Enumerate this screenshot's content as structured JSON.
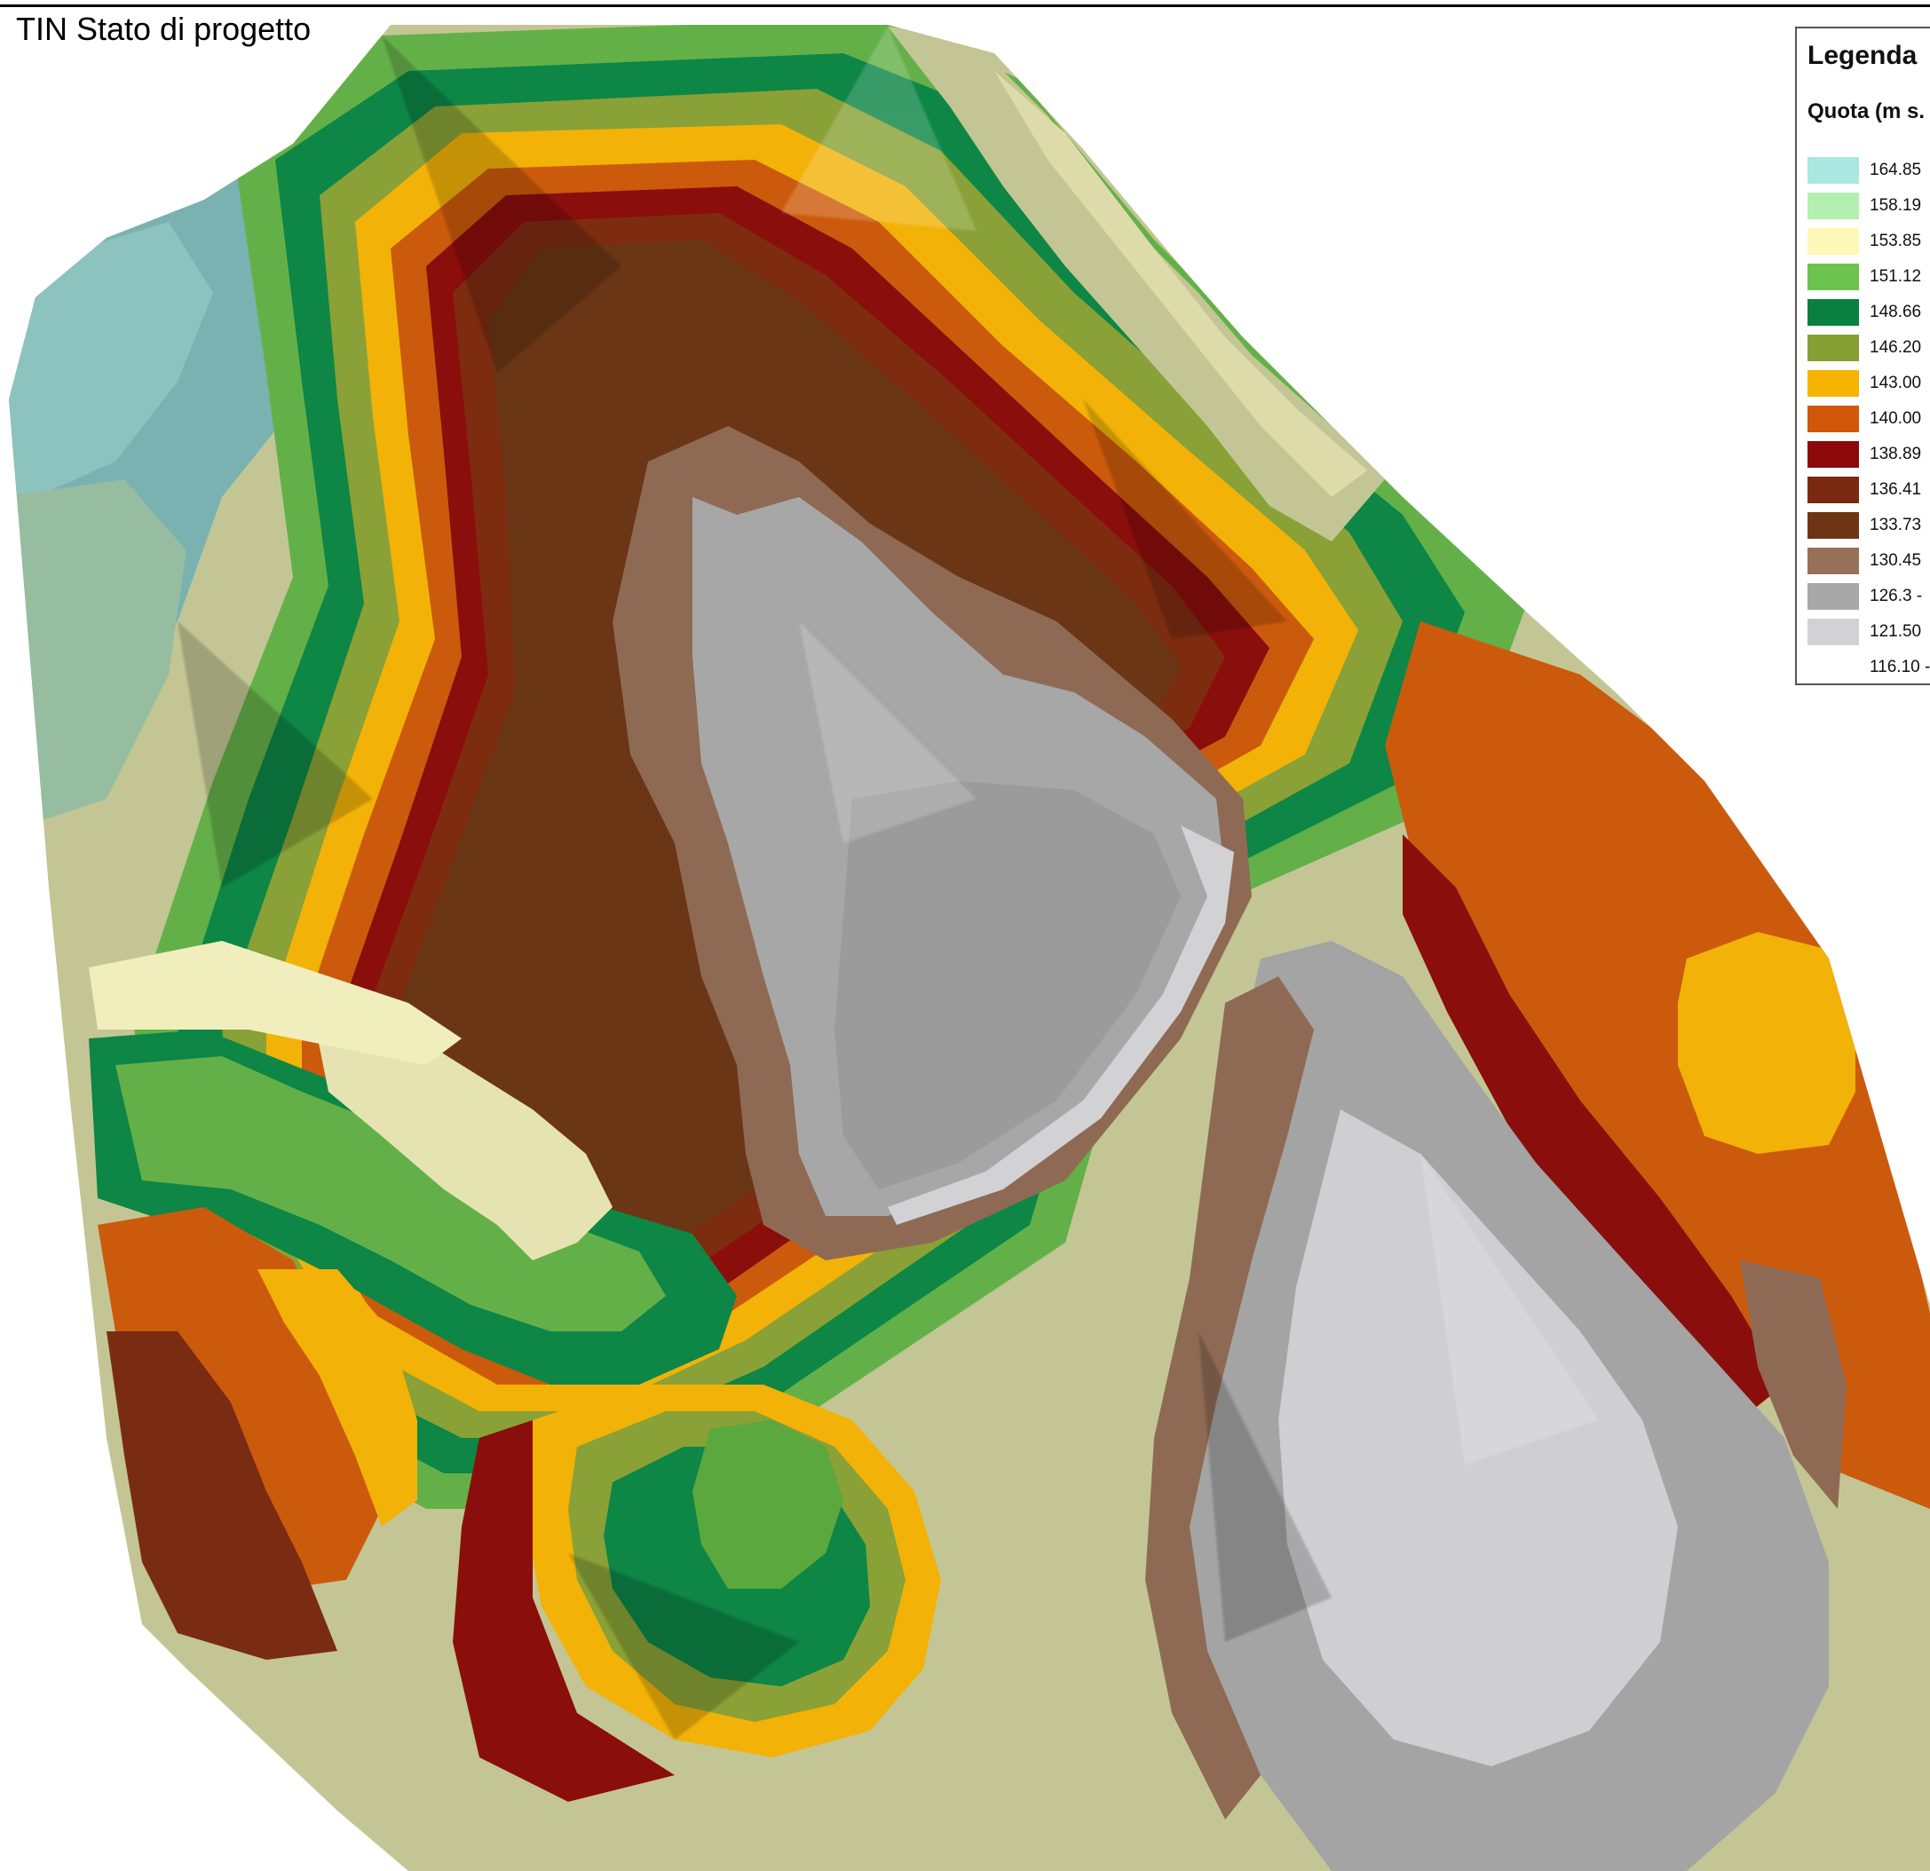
{
  "map": {
    "title": "TIN Stato di progetto"
  },
  "legend": {
    "title": "Legenda",
    "subtitle": "Quota (m s.",
    "classes": [
      {
        "label": "164.85",
        "color": "#a8e8e0"
      },
      {
        "label": "158.19",
        "color": "#b2efb0"
      },
      {
        "label": "153.85",
        "color": "#fdf8b8"
      },
      {
        "label": "151.12",
        "color": "#6cc44e"
      },
      {
        "label": "148.66",
        "color": "#0a8040"
      },
      {
        "label": "146.20",
        "color": "#86a033"
      },
      {
        "label": "143.00",
        "color": "#f5b400"
      },
      {
        "label": "140.00",
        "color": "#d15808"
      },
      {
        "label": "138.89",
        "color": "#8c0a0a"
      },
      {
        "label": "136.41",
        "color": "#7a2a10"
      },
      {
        "label": "133.73",
        "color": "#6e3514"
      },
      {
        "label": "130.45",
        "color": "#97705a"
      },
      {
        "label": "126.3 -",
        "color": "#a8a8a8"
      },
      {
        "label": "121.50",
        "color": "#d2d2d4"
      },
      {
        "label": "116.10 -",
        "color": "#ffffff"
      }
    ]
  }
}
